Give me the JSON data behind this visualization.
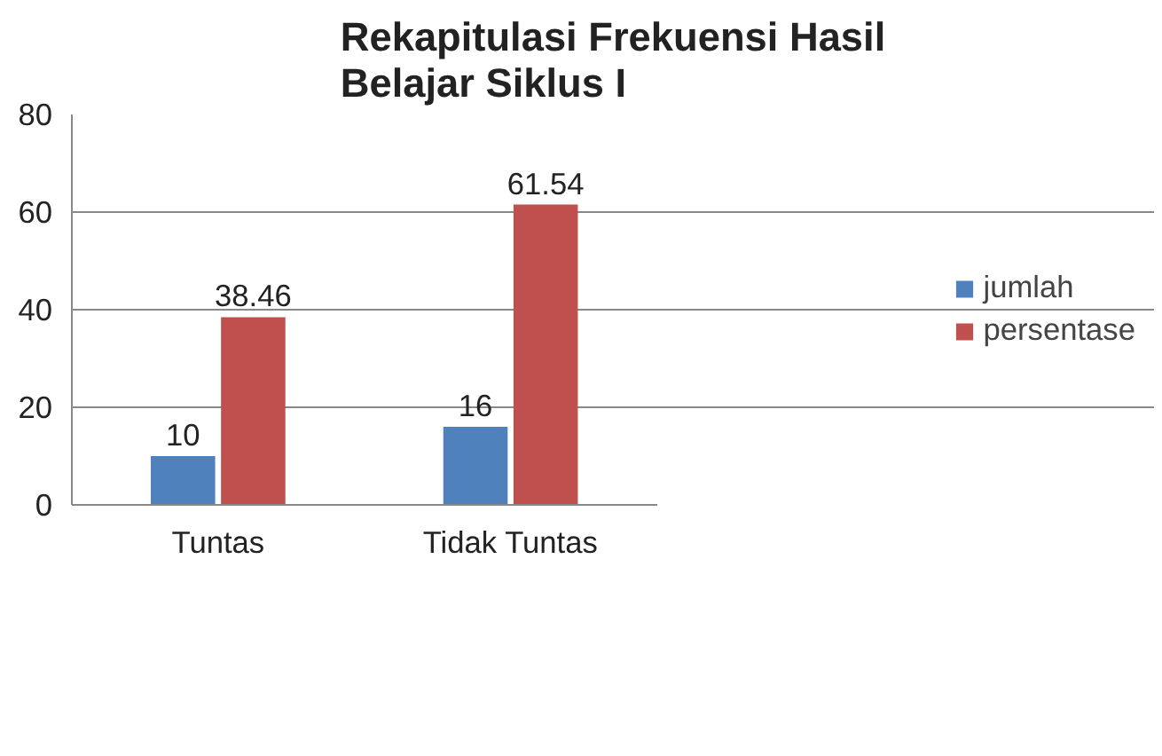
{
  "chart_data": {
    "type": "bar",
    "title": "Rekapitulasi Frekuensi Hasil Belajar Siklus I",
    "categories": [
      "Tuntas",
      "Tidak Tuntas"
    ],
    "series": [
      {
        "name": "jumlah",
        "color": "#4f81bd",
        "values": [
          10,
          16
        ]
      },
      {
        "name": "persentase",
        "color": "#c0504d",
        "values": [
          38.46,
          61.54
        ]
      }
    ],
    "ylim": [
      0,
      80
    ],
    "yticks": [
      0,
      20,
      40,
      60,
      80
    ],
    "grid": "y",
    "legend": "right",
    "data_labels": true
  }
}
